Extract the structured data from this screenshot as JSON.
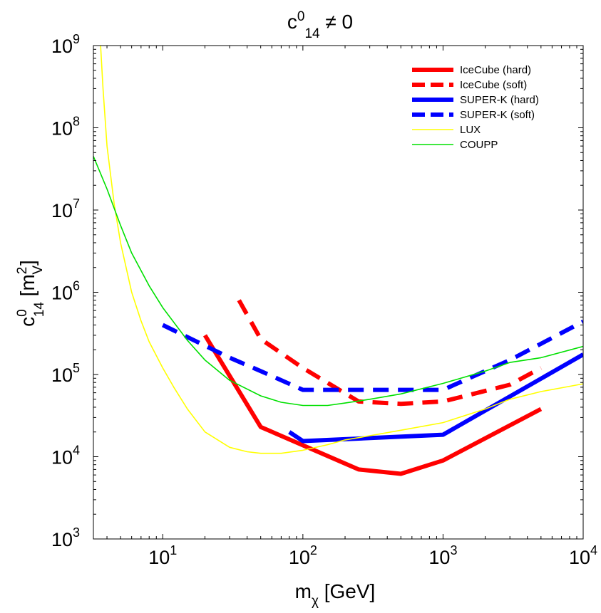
{
  "chart_data": {
    "type": "line",
    "title": {
      "base": "c",
      "sup": "0",
      "sub": "14",
      "rest": " ≠ 0"
    },
    "xlabel": {
      "base": "m",
      "sub": "χ",
      "rest": " [GeV]"
    },
    "ylabel": {
      "base": "c",
      "sup": "0",
      "sub": "14",
      "bracket_open": " [m",
      "bracket_sup": "2",
      "bracket_sub": "V",
      "bracket_close": "]"
    },
    "xscale": "log",
    "yscale": "log",
    "xlim": [
      3.2,
      10000
    ],
    "ylim": [
      1000,
      1000000000
    ],
    "xticks": [
      {
        "base": "10",
        "exp": "1",
        "value": 10
      },
      {
        "base": "10",
        "exp": "2",
        "value": 100
      },
      {
        "base": "10",
        "exp": "3",
        "value": 1000
      },
      {
        "base": "10",
        "exp": "4",
        "value": 10000
      }
    ],
    "yticks": [
      {
        "base": "10",
        "exp": "3",
        "value": 1000
      },
      {
        "base": "10",
        "exp": "4",
        "value": 10000
      },
      {
        "base": "10",
        "exp": "5",
        "value": 100000
      },
      {
        "base": "10",
        "exp": "6",
        "value": 1000000
      },
      {
        "base": "10",
        "exp": "7",
        "value": 10000000
      },
      {
        "base": "10",
        "exp": "8",
        "value": 100000000
      },
      {
        "base": "10",
        "exp": "9",
        "value": 1000000000
      }
    ],
    "legend_position": "top-right",
    "series": [
      {
        "name": "IceCube (hard)",
        "color": "#ff0000",
        "style": "solid",
        "weight": "thick",
        "x": [
          20,
          50,
          250,
          500,
          1000,
          5000
        ],
        "y": [
          300000,
          23000,
          7000,
          6200,
          9000,
          38000
        ]
      },
      {
        "name": "IceCube (soft)",
        "color": "#ff0000",
        "style": "dashed",
        "weight": "thick",
        "x": [
          35,
          50,
          100,
          250,
          500,
          1000,
          3000,
          5000
        ],
        "y": [
          800000,
          270000,
          120000,
          47000,
          44000,
          47000,
          75000,
          120000
        ]
      },
      {
        "name": "SUPER-K (hard)",
        "color": "#0000ff",
        "style": "solid",
        "weight": "thick",
        "x": [
          80,
          100,
          1000,
          10000
        ],
        "y": [
          20000,
          15500,
          18500,
          175000
        ]
      },
      {
        "name": "SUPER-K (soft)",
        "color": "#0000ff",
        "style": "dashed",
        "weight": "thick",
        "x": [
          10,
          30,
          50,
          100,
          200,
          1000,
          3000,
          10000
        ],
        "y": [
          400000,
          160000,
          110000,
          65000,
          65000,
          65000,
          150000,
          440000
        ]
      },
      {
        "name": "LUX",
        "color": "#ffff00",
        "style": "solid",
        "weight": "thin",
        "x": [
          3.6,
          3.75,
          4,
          4.5,
          5,
          6,
          7,
          8,
          10,
          12,
          15,
          20,
          30,
          40,
          50,
          70,
          100,
          150,
          200,
          300,
          500,
          1000,
          2000,
          3000,
          5000,
          10000
        ],
        "y": [
          1000000000,
          300000000,
          60000000,
          12000000,
          4000000,
          1000000,
          450000,
          250000,
          120000,
          70000,
          38000,
          20000,
          13000,
          11500,
          11000,
          11000,
          12000,
          14000,
          16000,
          18000,
          21000,
          26000,
          38000,
          50000,
          62000,
          77000
        ]
      },
      {
        "name": "COUPP",
        "color": "#00e000",
        "style": "solid",
        "weight": "thin",
        "x": [
          3.2,
          4,
          5,
          6,
          8,
          10,
          15,
          20,
          30,
          50,
          70,
          100,
          150,
          200,
          300,
          500,
          1000,
          2000,
          3000,
          5000,
          10000
        ],
        "y": [
          45000000,
          18000000,
          6500000,
          3000000,
          1200000,
          650000,
          260000,
          150000,
          85000,
          55000,
          46000,
          42000,
          42000,
          45000,
          50000,
          58000,
          78000,
          110000,
          140000,
          160000,
          220000
        ]
      }
    ]
  }
}
